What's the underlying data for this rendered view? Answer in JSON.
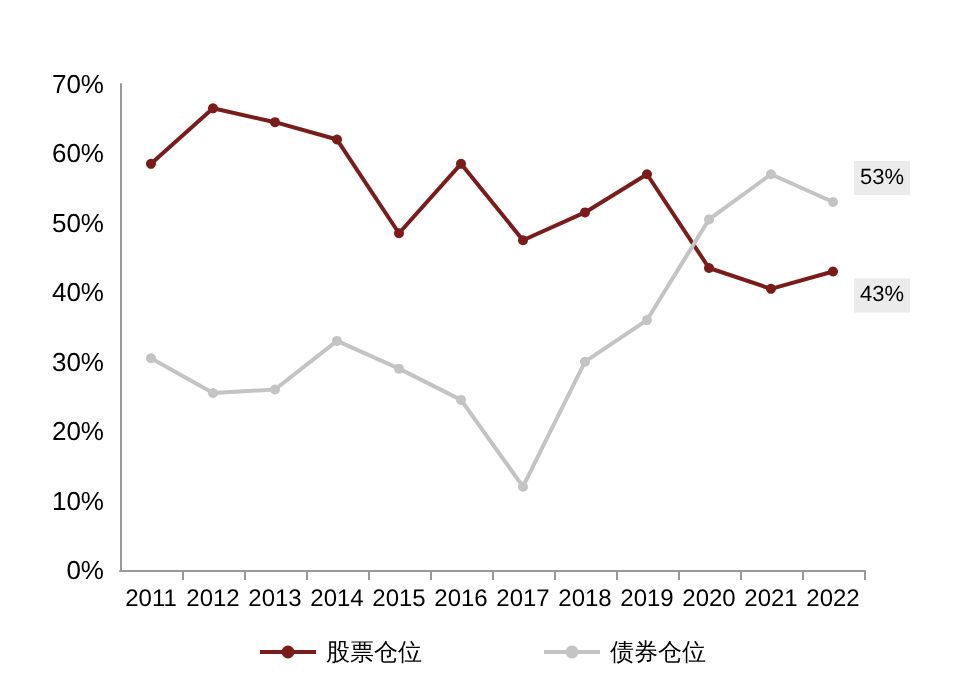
{
  "chart_data": {
    "type": "line",
    "categories": [
      "2011",
      "2012",
      "2013",
      "2014",
      "2015",
      "2016",
      "2017",
      "2018",
      "2019",
      "2020",
      "2021",
      "2022"
    ],
    "series": [
      {
        "name": "股票仓位",
        "color": "#7b1c1c",
        "values": [
          58.5,
          66.5,
          64.5,
          62,
          48.5,
          58.5,
          47.5,
          51.5,
          57,
          43.5,
          40.5,
          43
        ],
        "value_labels": [
          null,
          null,
          null,
          null,
          null,
          null,
          null,
          null,
          null,
          null,
          null,
          "43%"
        ]
      },
      {
        "name": "债券仓位",
        "color": "#c4c4c4",
        "values": [
          30.5,
          25.5,
          26,
          33,
          29,
          24.5,
          12,
          30,
          36,
          50.5,
          57,
          53
        ],
        "value_labels": [
          null,
          null,
          null,
          null,
          null,
          null,
          null,
          null,
          null,
          null,
          null,
          "53%"
        ]
      }
    ],
    "ylim": [
      0,
      70
    ],
    "yticks": [
      {
        "value": 0,
        "label": "0%"
      },
      {
        "value": 10,
        "label": "10%"
      },
      {
        "value": 20,
        "label": "20%"
      },
      {
        "value": 30,
        "label": "30%"
      },
      {
        "value": 40,
        "label": "40%"
      },
      {
        "value": 50,
        "label": "50%"
      },
      {
        "value": 60,
        "label": "60%"
      },
      {
        "value": 70,
        "label": "70%"
      }
    ],
    "grid": false,
    "legend": "bottom",
    "marker": "circle",
    "line_style": "solid"
  }
}
